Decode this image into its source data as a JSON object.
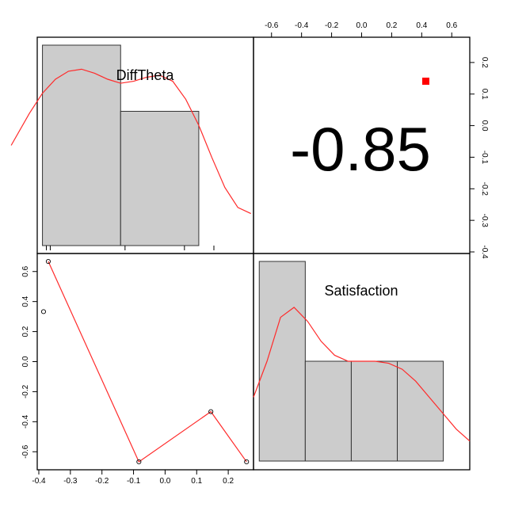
{
  "chart_data": {
    "type": "pairs",
    "variables": [
      "DiffTheta",
      "Satisfaction"
    ],
    "correlation": {
      "label": "-0.85",
      "value": -0.85,
      "significance_color": "#ff0000"
    },
    "points": {
      "x": [
        -0.385,
        -0.37,
        -0.083,
        0.145,
        0.258
      ],
      "y": [
        0.333,
        0.667,
        -0.667,
        -0.333,
        -0.667
      ]
    },
    "lowess": {
      "x": [
        -0.37,
        -0.083,
        0.145,
        0.258
      ],
      "y": [
        0.667,
        -0.667,
        -0.333,
        -0.667
      ]
    },
    "hist_difftheta": {
      "breaks": [
        -0.4,
        -0.1,
        0.2
      ],
      "relative_heights": [
        1.0,
        0.67
      ],
      "rug": [
        -0.385,
        -0.37,
        -0.083,
        0.145,
        0.258
      ],
      "density": {
        "x": [
          -0.52,
          -0.45,
          -0.4,
          -0.35,
          -0.3,
          -0.25,
          -0.2,
          -0.15,
          -0.1,
          -0.05,
          0.0,
          0.05,
          0.1,
          0.15,
          0.2,
          0.25,
          0.3,
          0.35,
          0.4
        ],
        "y": [
          0.5,
          0.66,
          0.76,
          0.83,
          0.87,
          0.88,
          0.86,
          0.83,
          0.81,
          0.82,
          0.84,
          0.85,
          0.82,
          0.73,
          0.6,
          0.44,
          0.29,
          0.19,
          0.16
        ]
      }
    },
    "hist_satisfaction": {
      "breaks": [
        -0.8,
        -0.4,
        0.0,
        0.4,
        0.8
      ],
      "relative_heights": [
        1.0,
        0.5,
        0.5,
        0.5
      ],
      "density": {
        "x": [
          -0.8,
          -0.7,
          -0.6,
          -0.5,
          -0.4,
          -0.3,
          -0.2,
          -0.1,
          0.0,
          0.1,
          0.2,
          0.3,
          0.4,
          0.5,
          0.6,
          0.7,
          0.8
        ],
        "y": [
          0.32,
          0.5,
          0.72,
          0.77,
          0.7,
          0.6,
          0.53,
          0.5,
          0.5,
          0.5,
          0.49,
          0.46,
          0.4,
          0.32,
          0.24,
          0.16,
          0.1
        ]
      }
    },
    "axes": {
      "x_difftheta_ticks": [
        "-0.4",
        "-0.3",
        "-0.2",
        "-0.1",
        "0.0",
        "0.1",
        "0.2"
      ],
      "x_difftheta_values": [
        -0.4,
        -0.3,
        -0.2,
        -0.1,
        0.0,
        0.1,
        0.2
      ],
      "x_difftheta_range": [
        -0.405,
        0.28
      ],
      "y_satisfaction_ticks": [
        "-0.6",
        "-0.4",
        "-0.2",
        "0.0",
        "0.2",
        "0.4",
        "0.6"
      ],
      "y_satisfaction_values": [
        -0.6,
        -0.4,
        -0.2,
        0.0,
        0.2,
        0.4,
        0.6
      ],
      "y_satisfaction_range": [
        -0.72,
        0.72
      ],
      "top_ticks": [
        "-0.6",
        "-0.4",
        "-0.2",
        "0.0",
        "0.2",
        "0.4",
        "0.6"
      ],
      "top_values": [
        -0.6,
        -0.4,
        -0.2,
        0.0,
        0.2,
        0.4,
        0.6
      ],
      "top_range": [
        -0.72,
        0.72
      ],
      "right_ticks": [
        "-0.4",
        "-0.3",
        "-0.2",
        "-0.1",
        "0.0",
        "0.1",
        "0.2"
      ],
      "right_values": [
        -0.4,
        -0.3,
        -0.2,
        -0.1,
        0.0,
        0.1,
        0.2
      ],
      "right_range": [
        -0.405,
        0.28
      ]
    }
  }
}
